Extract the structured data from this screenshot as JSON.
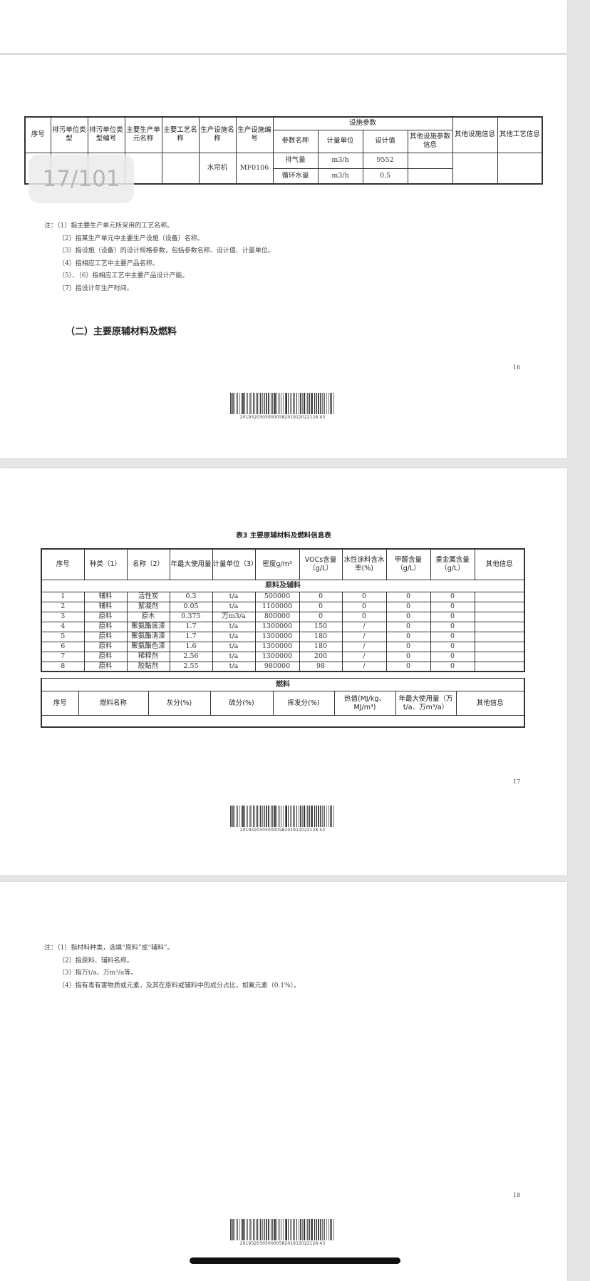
{
  "page_indicator": "17/101",
  "table1": {
    "headers": [
      "序号",
      "排污单位类型",
      "排污单位类型编号",
      "主要生产单元名称",
      "主要工艺名称",
      "生产设施名称",
      "生产设施编号",
      "设施参数",
      "其他设施信息",
      "其他工艺信息"
    ],
    "param_headers": [
      "参数名称",
      "计量单位",
      "设计值",
      "其他设施参数信息"
    ],
    "facility_name": "水帘机",
    "facility_code": "MF0106",
    "params": [
      {
        "name": "排气量",
        "unit": "m3/h",
        "value": "9552"
      },
      {
        "name": "循环水量",
        "unit": "m3/h",
        "value": "0.5"
      }
    ]
  },
  "notes1": [
    "注：（1）指主要生产单元所采用的工艺名称。",
    "（2）指某生产单元中主要生产设施（设备）名称。",
    "（3）指设施（设备）的设计规格参数，包括参数名称、设计值、计量单位。",
    "（4）指相应工艺中主要产品名称。",
    "（5）、（6）指相应工艺中主要产品设计产能。",
    "（7）指设计年生产时间。"
  ],
  "section_heading": "（二）主要原辅材料及燃料",
  "page_numbers": [
    "16",
    "17",
    "18"
  ],
  "barcode_number": "2019320305000058201912022128 43",
  "table3": {
    "title": "表3 主要原辅材料及燃料信息表",
    "headers": [
      "序号",
      "种类（1）",
      "名称（2）",
      "年最大使用量",
      "计量单位（3）",
      "密度g/m³",
      "VOCs含量（g/L）",
      "水性涂料含水率(%)",
      "甲醛含量（g/L）",
      "重金属含量（g/L）",
      "其他信息"
    ],
    "section_materials": "原料及辅料",
    "rows": [
      [
        "1",
        "辅料",
        "活性炭",
        "0.3",
        "t/a",
        "500000",
        "0",
        "0",
        "0",
        "0",
        ""
      ],
      [
        "2",
        "辅料",
        "絮凝剂",
        "0.05",
        "t/a",
        "1100000",
        "0",
        "0",
        "0",
        "0",
        ""
      ],
      [
        "3",
        "原料",
        "原木",
        "0.375",
        "万m3/a",
        "800000",
        "0",
        "0",
        "0",
        "0",
        ""
      ],
      [
        "4",
        "原料",
        "聚氨酯底漆",
        "1.7",
        "t/a",
        "1300000",
        "150",
        "/",
        "0",
        "0",
        ""
      ],
      [
        "5",
        "原料",
        "聚氨酯清漆",
        "1.7",
        "t/a",
        "1300000",
        "180",
        "/",
        "0",
        "0",
        ""
      ],
      [
        "6",
        "原料",
        "聚氨酯色漆",
        "1.6",
        "t/a",
        "1300000",
        "180",
        "/",
        "0",
        "0",
        ""
      ],
      [
        "7",
        "原料",
        "稀释剂",
        "2.56",
        "t/a",
        "1300000",
        "200",
        "/",
        "0",
        "0",
        ""
      ],
      [
        "8",
        "原料",
        "胶黏剂",
        "2.55",
        "t/a",
        "980000",
        "98",
        "/",
        "0",
        "0",
        ""
      ]
    ],
    "section_fuel": "燃料",
    "fuel_headers": [
      "序号",
      "燃料名称",
      "灰分(%)",
      "硫分(%)",
      "挥发分(%)",
      "热值(MJ/kg、MJ/m³)",
      "年最大使用量（万t/a、万m³/a）",
      "其他信息"
    ]
  },
  "notes3": [
    "注：（1）指材料种类，选填“原料”或“辅料”。",
    "（2）指原料、辅料名称。",
    "（3）指万t/a、万m³/a等。",
    "（4）指有毒有害物质或元素，及其在原料或辅料中的成分占比，如氟元素（0.1%）。"
  ]
}
